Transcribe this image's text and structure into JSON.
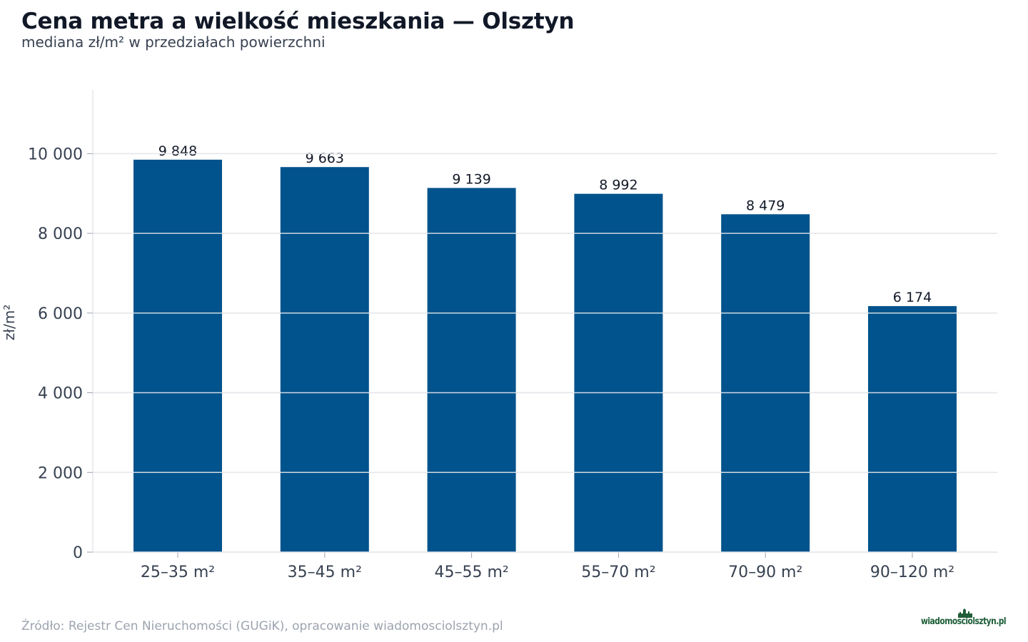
{
  "header": {
    "title": "Cena metra a wielkość mieszkania — Olsztyn",
    "subtitle": "mediana zł/m² w przedziałach powierzchni"
  },
  "footer": {
    "source": "Źródło: Rejestr Cen Nieruchomości (GUGiK), opracowanie wiadomosciolsztyn.pl",
    "logo_text": "wiadomosciolsztyn.pl"
  },
  "colors": {
    "bar": "#00538c",
    "grid": "#e5e7eb",
    "axis_text": "#374151",
    "label_text": "#111827"
  },
  "chart_data": {
    "type": "bar",
    "title": "Cena metra a wielkość mieszkania — Olsztyn",
    "subtitle": "mediana zł/m² w przedziałach powierzchni",
    "xlabel": "",
    "ylabel": "zł/m²",
    "categories": [
      "25–35 m²",
      "35–45 m²",
      "45–55 m²",
      "55–70 m²",
      "70–90 m²",
      "90–120 m²"
    ],
    "values": [
      9848,
      9663,
      9139,
      8992,
      8479,
      6174
    ],
    "value_labels": [
      "9 848",
      "9 663",
      "9 139",
      "8 992",
      "8 479",
      "6 174"
    ],
    "ylim": [
      0,
      11600
    ],
    "yticks": [
      0,
      2000,
      4000,
      6000,
      8000,
      10000
    ],
    "ytick_labels": [
      "0",
      "2 000",
      "4 000",
      "6 000",
      "8 000",
      "10 000"
    ],
    "grid": true,
    "legend": "none"
  }
}
